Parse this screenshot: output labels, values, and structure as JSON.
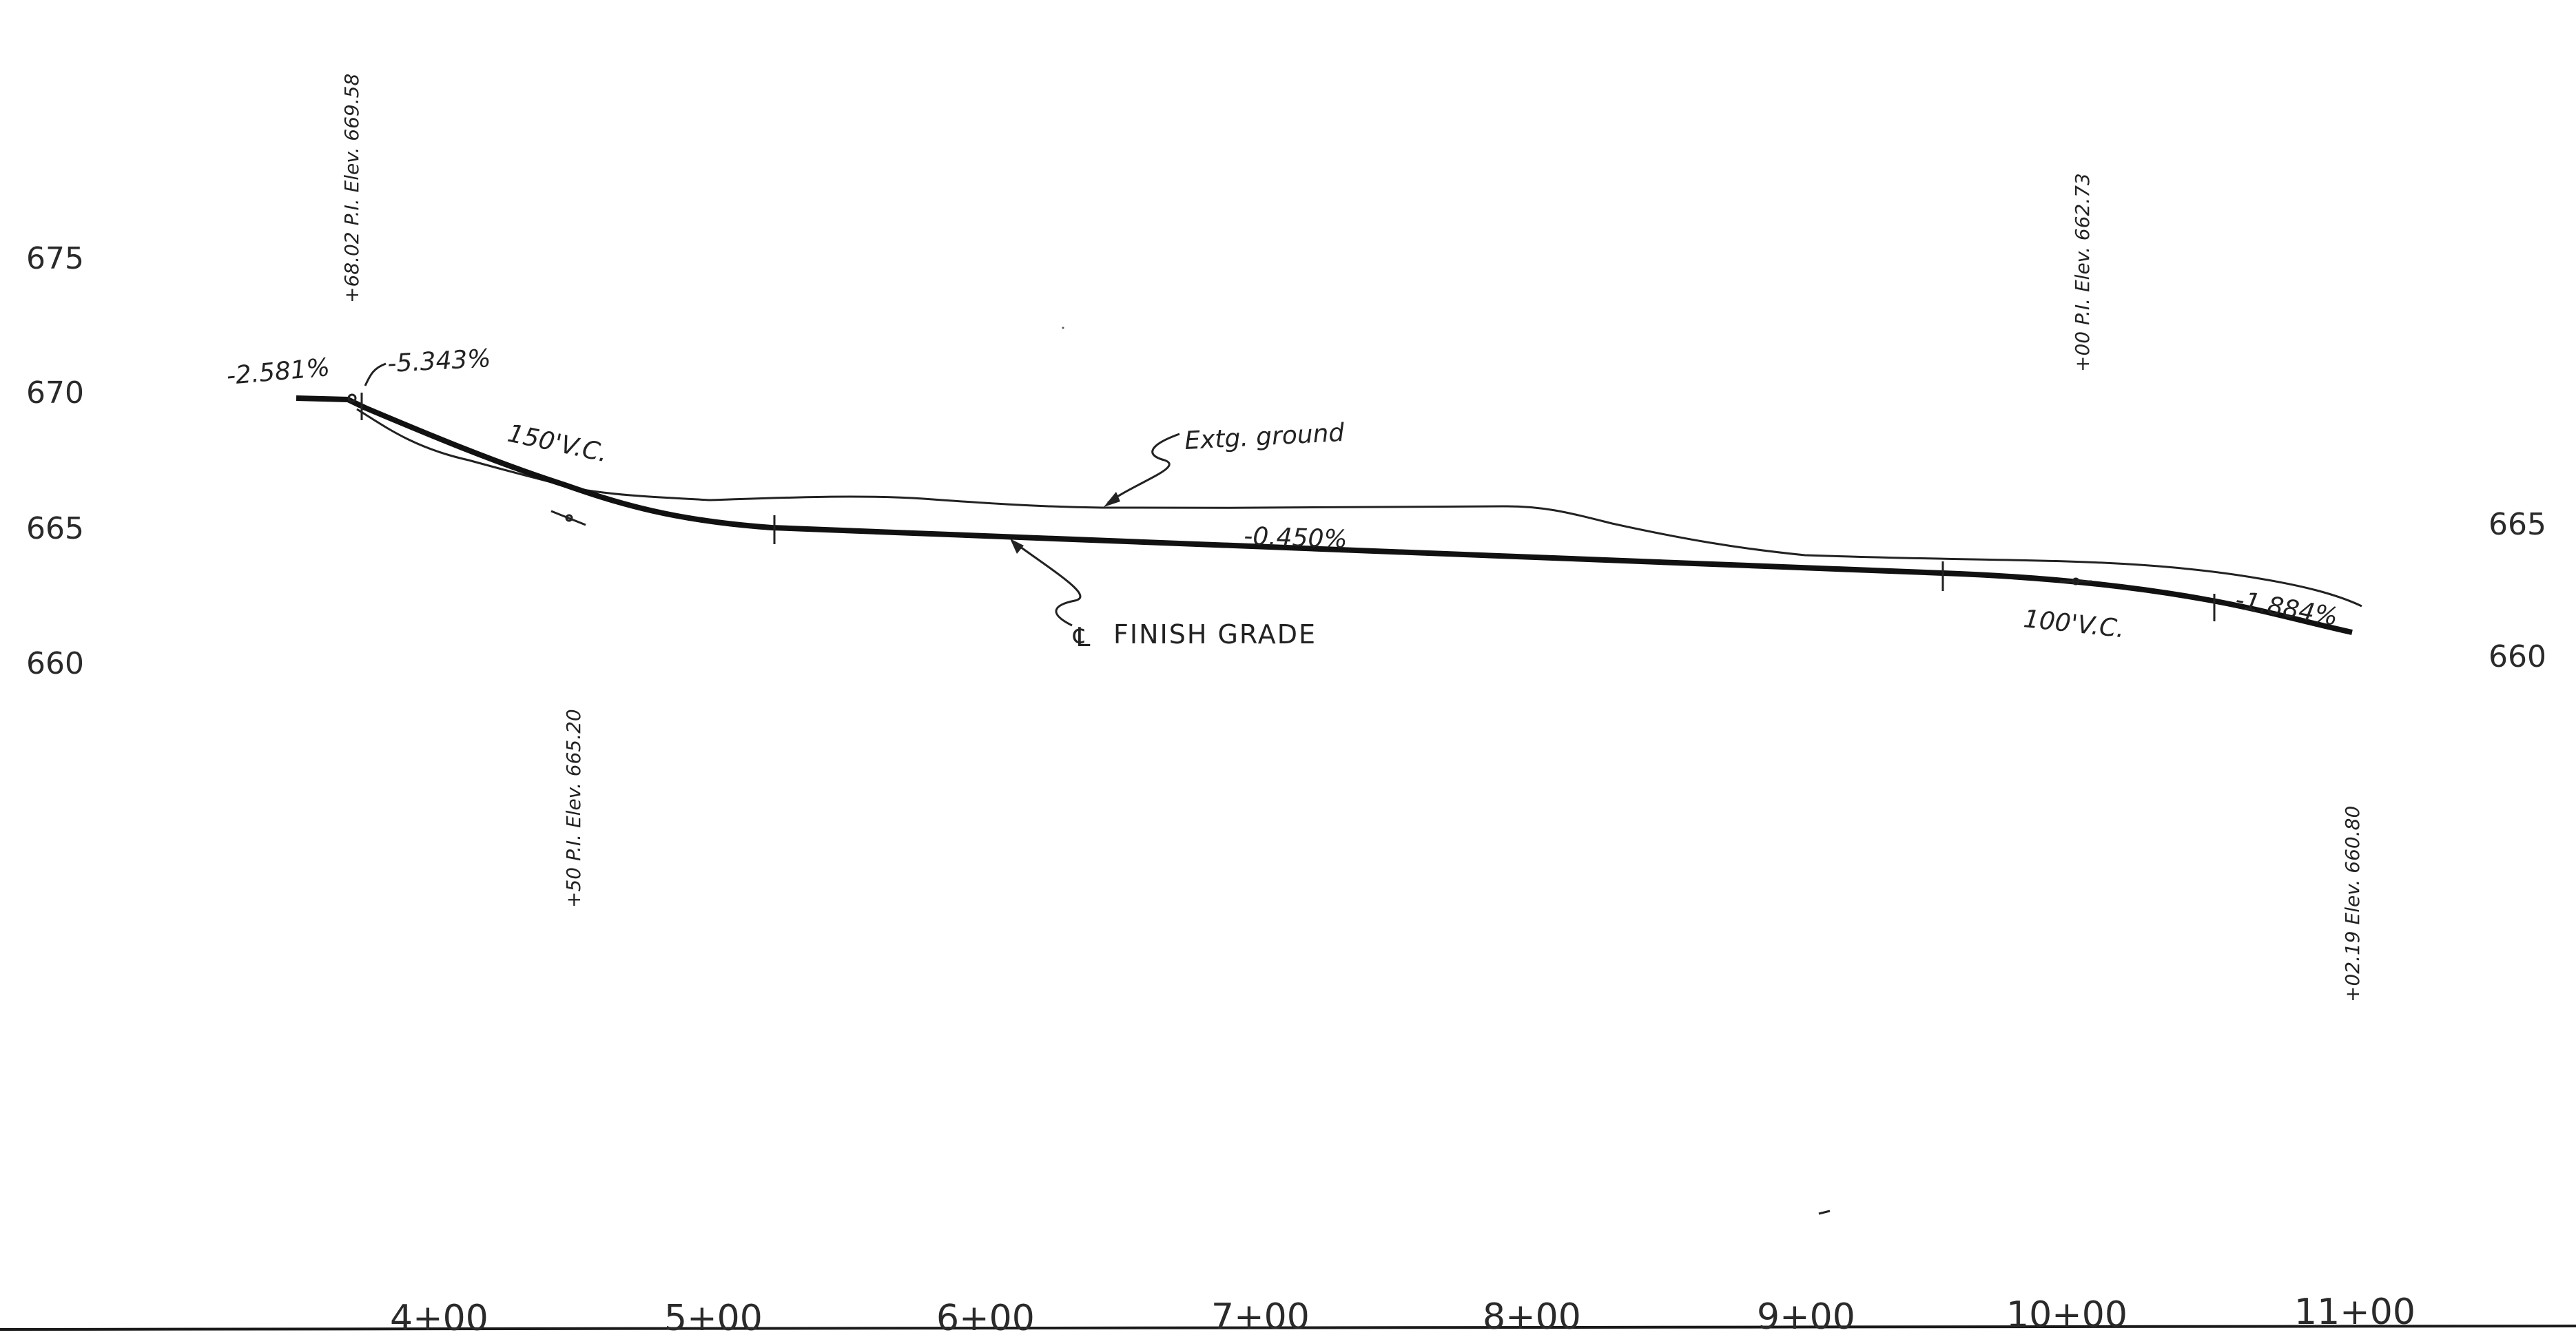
{
  "elevation_ticks": {
    "left": [
      "675",
      "670",
      "665",
      "660"
    ],
    "right": [
      "665",
      "660"
    ]
  },
  "stations": [
    "4+00",
    "5+00",
    "6+00",
    "7+00",
    "8+00",
    "9+00",
    "10+00",
    "11+00"
  ],
  "grades": {
    "g1": "-2.581%",
    "g2": "-5.343%",
    "g3": "-0.450%",
    "g4": "-1.884%"
  },
  "vertical_curves": {
    "vc1": "150'V.C.",
    "vc2": "100'V.C."
  },
  "pi_notes": {
    "pi1": "+68.02 P.I. Elev. 669.58",
    "pi2": "+50 P.I. Elev. 665.20",
    "pi3": "+00 P.I. Elev. 662.73",
    "end": "+02.19 Elev. 660.80"
  },
  "labels": {
    "existing_ground": "Extg. ground",
    "finish_grade": "FINISH GRADE",
    "centerline_symbol": "℄"
  },
  "colors": {
    "ink": "#222222",
    "paper": "#ffffff"
  }
}
